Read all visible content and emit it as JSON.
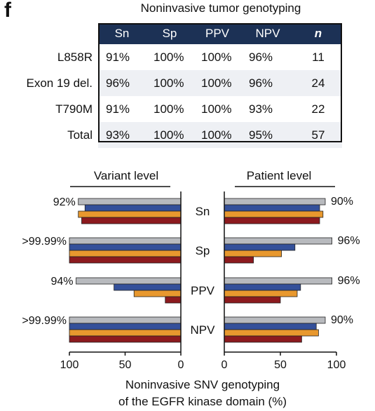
{
  "panel_letter": "f",
  "table": {
    "title": "Noninvasive tumor genotyping",
    "headers": [
      "Sn",
      "Sp",
      "PPV",
      "NPV",
      "n"
    ],
    "header_color": "#1c3155",
    "rows": [
      {
        "label": "L858R",
        "cells": [
          "91%",
          "100%",
          "100%",
          "96%",
          "11"
        ]
      },
      {
        "label": "Exon 19 del.",
        "cells": [
          "96%",
          "100%",
          "100%",
          "96%",
          "24"
        ]
      },
      {
        "label": "T790M",
        "cells": [
          "91%",
          "100%",
          "100%",
          "93%",
          "22"
        ]
      },
      {
        "label": "Total",
        "cells": [
          "93%",
          "100%",
          "100%",
          "95%",
          "57"
        ]
      }
    ]
  },
  "chart_data": {
    "type": "bar",
    "orientation": "horizontal-mirrored",
    "xlabel_lines": [
      "Noninvasive SNV genotyping",
      "of the EGFR kinase domain (%)"
    ],
    "panels": [
      {
        "title": "Variant level",
        "direction": "leftward",
        "xlim": [
          0,
          100
        ],
        "ticks": [
          100,
          50,
          0
        ]
      },
      {
        "title": "Patient level",
        "direction": "rightward",
        "xlim": [
          0,
          100
        ],
        "ticks": [
          0,
          50,
          100
        ]
      }
    ],
    "categories": [
      "Sn",
      "Sp",
      "PPV",
      "NPV"
    ],
    "series_colors": [
      "#b8babe",
      "#34509a",
      "#e8982e",
      "#8c1a1e"
    ],
    "variant_level": {
      "annotations": [
        "92%",
        ">99.99%",
        "94%",
        ">99.99%"
      ],
      "series": [
        {
          "values": [
            92,
            100,
            94,
            100
          ]
        },
        {
          "values": [
            86,
            100,
            60,
            100
          ]
        },
        {
          "values": [
            92,
            100,
            42,
            100
          ]
        },
        {
          "values": [
            89,
            100,
            14,
            100
          ]
        }
      ]
    },
    "patient_level": {
      "annotations": [
        "90%",
        "96%",
        "96%",
        "90%"
      ],
      "series": [
        {
          "values": [
            90,
            96,
            96,
            90
          ]
        },
        {
          "values": [
            85,
            63,
            68,
            82
          ]
        },
        {
          "values": [
            88,
            51,
            65,
            84
          ]
        },
        {
          "values": [
            85,
            26,
            50,
            69
          ]
        }
      ]
    }
  }
}
